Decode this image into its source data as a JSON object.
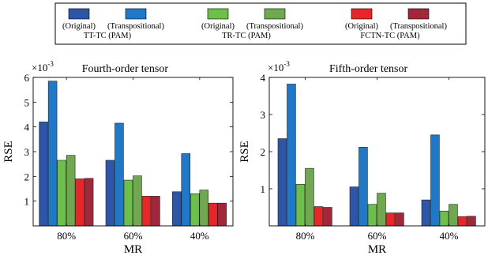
{
  "legend": {
    "position": "top",
    "groups": [
      {
        "original_label": "(Original)",
        "transpositional_label": "(Transpositional)",
        "method": "TT-TC (PAM)",
        "original_color": "#2d55a8",
        "transpositional_color": "#1f78c8"
      },
      {
        "original_label": "(Original)",
        "transpositional_label": "(Transpositional)",
        "method": "TR-TC (PAM)",
        "original_color": "#6cc04a",
        "transpositional_color": "#70a850"
      },
      {
        "original_label": "(Original)",
        "transpositional_label": "(Transpositional)",
        "method": "FCTN-TC (PAM)",
        "original_color": "#e8262a",
        "transpositional_color": "#a0283a"
      }
    ]
  },
  "chart_data": [
    {
      "type": "bar",
      "title": "Fourth-order tensor",
      "xlabel": "MR",
      "ylabel": "RSE",
      "y_exponent_label": "×10",
      "y_exponent": "-3",
      "categories": [
        "80%",
        "60%",
        "40%"
      ],
      "ylim": [
        0,
        6
      ],
      "yticks": [
        1,
        2,
        3,
        4,
        5,
        6
      ],
      "grid": false,
      "series": [
        {
          "name": "TT-TC (PAM) (Original)",
          "color": "#2d55a8",
          "values": [
            4.2,
            2.65,
            1.38
          ]
        },
        {
          "name": "TT-TC (PAM) (Transpositional)",
          "color": "#1f78c8",
          "values": [
            5.85,
            4.15,
            2.92
          ]
        },
        {
          "name": "TR-TC (PAM) (Original)",
          "color": "#6cc04a",
          "values": [
            2.65,
            1.85,
            1.3
          ]
        },
        {
          "name": "TR-TC (PAM) (Transpositional)",
          "color": "#70a850",
          "values": [
            2.85,
            2.02,
            1.45
          ]
        },
        {
          "name": "FCTN-TC (PAM) (Original)",
          "color": "#e8262a",
          "values": [
            1.9,
            1.2,
            0.92
          ]
        },
        {
          "name": "FCTN-TC (PAM) (Transpositional)",
          "color": "#a0283a",
          "values": [
            1.92,
            1.2,
            0.92
          ]
        }
      ]
    },
    {
      "type": "bar",
      "title": "Fifth-order tensor",
      "xlabel": "MR",
      "ylabel": "RSE",
      "y_exponent_label": "×10",
      "y_exponent": "-3",
      "categories": [
        "80%",
        "60%",
        "40%"
      ],
      "ylim": [
        0,
        4
      ],
      "yticks": [
        1,
        2,
        3,
        4
      ],
      "grid": false,
      "series": [
        {
          "name": "TT-TC (PAM) (Original)",
          "color": "#2d55a8",
          "values": [
            2.35,
            1.05,
            0.7
          ]
        },
        {
          "name": "TT-TC (PAM) (Transpositional)",
          "color": "#1f78c8",
          "values": [
            3.82,
            2.12,
            2.45
          ]
        },
        {
          "name": "TR-TC (PAM) (Original)",
          "color": "#6cc04a",
          "values": [
            1.12,
            0.58,
            0.4
          ]
        },
        {
          "name": "TR-TC (PAM) (Transpositional)",
          "color": "#70a850",
          "values": [
            1.55,
            0.88,
            0.58
          ]
        },
        {
          "name": "FCTN-TC (PAM) (Original)",
          "color": "#e8262a",
          "values": [
            0.52,
            0.35,
            0.25
          ]
        },
        {
          "name": "FCTN-TC (PAM) (Transpositional)",
          "color": "#a0283a",
          "values": [
            0.5,
            0.35,
            0.26
          ]
        }
      ]
    }
  ]
}
